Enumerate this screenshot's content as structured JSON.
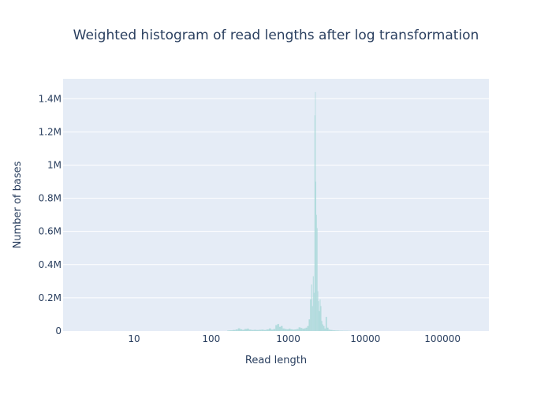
{
  "chart_data": {
    "type": "bar",
    "title": "Weighted histogram of read lengths after log transformation",
    "xlabel": "Read length",
    "ylabel": "Number of bases",
    "x_scale": "log",
    "xlim": [
      1.2,
      400000
    ],
    "ylim": [
      0,
      1520000
    ],
    "x_ticks": [
      10,
      100,
      1000,
      10000,
      100000
    ],
    "x_tick_labels": [
      "10",
      "100",
      "1000",
      "10000",
      "100000"
    ],
    "y_ticks": [
      0,
      200000,
      400000,
      600000,
      800000,
      1000000,
      1200000,
      1400000
    ],
    "y_tick_labels": [
      "0",
      "0.2M",
      "0.4M",
      "0.6M",
      "0.8M",
      "1M",
      "1.2M",
      "1.4M"
    ],
    "grid": true,
    "colors": {
      "bar": "#a8d8d8",
      "plot_bg": "#e5ecf6",
      "grid": "#ffffff",
      "text": "#2a3f5f"
    },
    "bins": [
      {
        "x": 165,
        "y": 3000
      },
      {
        "x": 180,
        "y": 4000
      },
      {
        "x": 200,
        "y": 6000
      },
      {
        "x": 215,
        "y": 9000
      },
      {
        "x": 230,
        "y": 16000
      },
      {
        "x": 245,
        "y": 10000
      },
      {
        "x": 260,
        "y": 7000
      },
      {
        "x": 280,
        "y": 12000
      },
      {
        "x": 300,
        "y": 14000
      },
      {
        "x": 320,
        "y": 8000
      },
      {
        "x": 345,
        "y": 6000
      },
      {
        "x": 370,
        "y": 7000
      },
      {
        "x": 400,
        "y": 6000
      },
      {
        "x": 430,
        "y": 7000
      },
      {
        "x": 460,
        "y": 8000
      },
      {
        "x": 500,
        "y": 6000
      },
      {
        "x": 540,
        "y": 9000
      },
      {
        "x": 580,
        "y": 15000
      },
      {
        "x": 620,
        "y": 8000
      },
      {
        "x": 660,
        "y": 12000
      },
      {
        "x": 700,
        "y": 35000
      },
      {
        "x": 740,
        "y": 42000
      },
      {
        "x": 780,
        "y": 25000
      },
      {
        "x": 820,
        "y": 30000
      },
      {
        "x": 870,
        "y": 15000
      },
      {
        "x": 920,
        "y": 12000
      },
      {
        "x": 980,
        "y": 10000
      },
      {
        "x": 1040,
        "y": 14000
      },
      {
        "x": 1100,
        "y": 10000
      },
      {
        "x": 1170,
        "y": 8000
      },
      {
        "x": 1240,
        "y": 9000
      },
      {
        "x": 1320,
        "y": 12000
      },
      {
        "x": 1400,
        "y": 22000
      },
      {
        "x": 1480,
        "y": 18000
      },
      {
        "x": 1560,
        "y": 14000
      },
      {
        "x": 1640,
        "y": 16000
      },
      {
        "x": 1720,
        "y": 20000
      },
      {
        "x": 1800,
        "y": 30000
      },
      {
        "x": 1880,
        "y": 70000
      },
      {
        "x": 1950,
        "y": 190000
      },
      {
        "x": 2010,
        "y": 280000
      },
      {
        "x": 2060,
        "y": 150000
      },
      {
        "x": 2110,
        "y": 330000
      },
      {
        "x": 2160,
        "y": 230000
      },
      {
        "x": 2210,
        "y": 1300000
      },
      {
        "x": 2240,
        "y": 1440000
      },
      {
        "x": 2280,
        "y": 900000
      },
      {
        "x": 2320,
        "y": 700000
      },
      {
        "x": 2370,
        "y": 620000
      },
      {
        "x": 2420,
        "y": 240000
      },
      {
        "x": 2470,
        "y": 180000
      },
      {
        "x": 2530,
        "y": 120000
      },
      {
        "x": 2590,
        "y": 190000
      },
      {
        "x": 2650,
        "y": 150000
      },
      {
        "x": 2720,
        "y": 60000
      },
      {
        "x": 2800,
        "y": 40000
      },
      {
        "x": 2900,
        "y": 30000
      },
      {
        "x": 3000,
        "y": 15000
      },
      {
        "x": 3100,
        "y": 85000
      },
      {
        "x": 3250,
        "y": 20000
      },
      {
        "x": 3400,
        "y": 8000
      },
      {
        "x": 3600,
        "y": 6000
      },
      {
        "x": 3900,
        "y": 4000
      },
      {
        "x": 4300,
        "y": 3000
      },
      {
        "x": 4800,
        "y": 2000
      },
      {
        "x": 5500,
        "y": 1500
      },
      {
        "x": 6500,
        "y": 1000
      }
    ]
  }
}
